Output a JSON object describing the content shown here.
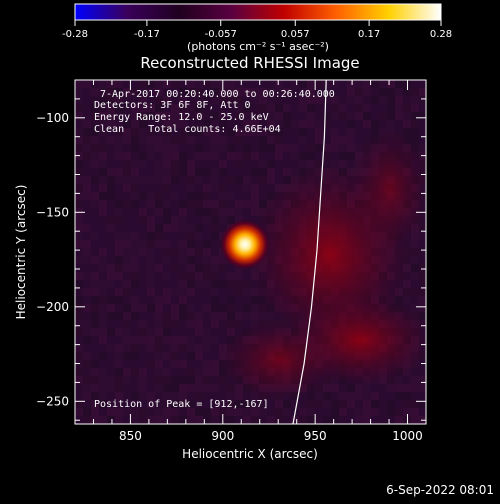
{
  "colorbar": {
    "ticks": [
      "-0.28",
      "-0.17",
      "-0.057",
      "0.057",
      "0.17",
      "0.28"
    ],
    "min": -0.28,
    "max": 0.28,
    "unit_label": "(photons cm⁻² s⁻¹ asec⁻²)",
    "stops": [
      "#0000ff",
      "#3a005a",
      "#200020",
      "#5a0040",
      "#c00000",
      "#ff6000",
      "#ffd000",
      "#ffffff"
    ]
  },
  "chart_data": {
    "type": "heatmap",
    "title": "Reconstructed RHESSI Image",
    "xlabel": "Heliocentric X (arcsec)",
    "ylabel": "Heliocentric Y (arcsec)",
    "xlim": [
      820,
      1010
    ],
    "ylim": [
      -262,
      -80
    ],
    "xticks": [
      850,
      900,
      950,
      1000
    ],
    "yticks": [
      -100,
      -150,
      -200,
      -250
    ],
    "info_lines": [
      "7-Apr-2017 00:20:40.000 to 00:26:40.000",
      "Detectors: 3F 6F 8F, Att 0",
      "Energy Range: 12.0 - 25.0 keV",
      "Clean    Total counts: 4.66E+04"
    ],
    "peak": {
      "x": 912,
      "y": -167,
      "label": "Position of Peak = [912,-167]"
    },
    "limb": [
      [
        938,
        -262
      ],
      [
        944,
        -230
      ],
      [
        948,
        -200
      ],
      [
        951,
        -170
      ],
      [
        953,
        -140
      ],
      [
        955,
        -110
      ],
      [
        956,
        -80
      ]
    ]
  },
  "footer": {
    "date": "6-Sep-2022 08:01"
  }
}
